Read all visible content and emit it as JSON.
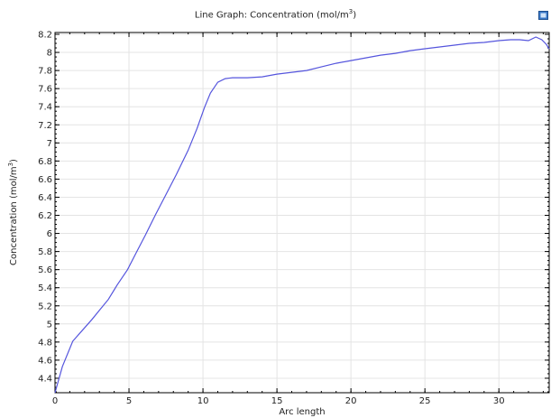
{
  "title": {
    "prefix": "Line Graph: Concentration (mol/m",
    "sup": "3",
    "suffix": ")"
  },
  "chart_data": {
    "type": "line",
    "title": "Line Graph: Concentration (mol/m³)",
    "xlabel": "Arc length",
    "ylabel": "Concentration (mol/m³)",
    "xlim": [
      0,
      33.4
    ],
    "ylim": [
      4.24,
      8.22
    ],
    "xticks": [
      0,
      5,
      10,
      15,
      20,
      25,
      30
    ],
    "yticks": [
      4.4,
      4.6,
      4.8,
      5,
      5.2,
      5.4,
      5.6,
      5.8,
      6,
      6.2,
      6.4,
      6.6,
      6.8,
      7,
      7.2,
      7.4,
      7.6,
      7.8,
      8,
      8.2
    ],
    "grid": true,
    "series": [
      {
        "color": "#5555dd",
        "x": [
          0,
          0.5,
          1.2,
          1.8,
          2.5,
          3.0,
          3.6,
          4.2,
          4.9,
          5.5,
          6.1,
          6.8,
          7.5,
          8.2,
          9.0,
          9.6,
          10.1,
          10.5,
          11.0,
          11.5,
          12.0,
          13.0,
          14.0,
          15.0,
          16.0,
          17.0,
          18.0,
          19.0,
          20.0,
          21.0,
          22.0,
          23.0,
          24.0,
          25.0,
          26.0,
          27.0,
          28.0,
          29.0,
          30.0,
          30.8,
          31.4,
          32.0,
          32.5,
          32.9,
          33.2,
          33.4
        ],
        "y": [
          4.24,
          4.53,
          4.81,
          4.92,
          5.05,
          5.15,
          5.27,
          5.43,
          5.6,
          5.79,
          5.98,
          6.21,
          6.43,
          6.65,
          6.92,
          7.16,
          7.39,
          7.55,
          7.67,
          7.71,
          7.72,
          7.72,
          7.73,
          7.76,
          7.78,
          7.8,
          7.84,
          7.88,
          7.91,
          7.94,
          7.97,
          7.99,
          8.02,
          8.04,
          8.06,
          8.08,
          8.1,
          8.11,
          8.13,
          8.14,
          8.14,
          8.13,
          8.17,
          8.14,
          8.09,
          8.04
        ]
      }
    ]
  }
}
